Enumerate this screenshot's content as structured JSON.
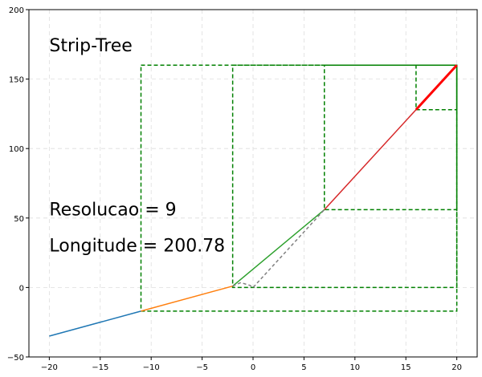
{
  "chart_data": {
    "type": "line",
    "title": "",
    "xlabel": "",
    "ylabel": "",
    "xlim": [
      -22,
      22
    ],
    "ylim": [
      -50,
      200
    ],
    "x_ticks": [
      -20,
      -15,
      -10,
      -5,
      0,
      5,
      10,
      15,
      20
    ],
    "y_ticks": [
      -50,
      0,
      50,
      100,
      150,
      200
    ],
    "x_tick_labels": [
      "−20",
      "−15",
      "−10",
      "−5",
      "0",
      "5",
      "10",
      "15",
      "20"
    ],
    "y_tick_labels": [
      "−50",
      "0",
      "50",
      "100",
      "150",
      "200"
    ],
    "grid": true,
    "annotations": [
      {
        "text": "Strip-Tree",
        "x": -20,
        "y": 170
      },
      {
        "text": "Resolucao = 9",
        "x": -20,
        "y": 52
      },
      {
        "text": "Longitude = 200.78",
        "x": -20,
        "y": 26
      }
    ],
    "series": [
      {
        "color": "#1f77b4",
        "style": "solid",
        "x": [
          -20,
          -11
        ],
        "y": [
          -35,
          -17
        ]
      },
      {
        "color": "#ff7f0e",
        "style": "solid",
        "x": [
          -11,
          -2
        ],
        "y": [
          -17,
          1
        ]
      },
      {
        "color": "#2ca02c",
        "style": "solid",
        "x": [
          -2,
          7
        ],
        "y": [
          1,
          56
        ]
      },
      {
        "color": "#d62728",
        "style": "solid",
        "x": [
          7,
          16
        ],
        "y": [
          56,
          128
        ]
      },
      {
        "color": "#ff0000",
        "style": "solid",
        "x": [
          16,
          20
        ],
        "y": [
          128,
          160
        ],
        "thick": true
      },
      {
        "color": "#808080",
        "style": "dashed",
        "x": [
          -2,
          -1.2,
          -0.3,
          0,
          7
        ],
        "y": [
          1,
          3.5,
          1.5,
          0,
          56
        ]
      }
    ],
    "boxes": [
      {
        "x": [
          -11,
          20
        ],
        "y": [
          -17,
          160
        ],
        "color": "#008000"
      },
      {
        "x": [
          -2,
          20
        ],
        "y": [
          0,
          160
        ],
        "color": "#008000"
      },
      {
        "x": [
          7,
          20
        ],
        "y": [
          56,
          160
        ],
        "color": "#008000"
      },
      {
        "x": [
          16,
          20
        ],
        "y": [
          128,
          160
        ],
        "color": "#008000"
      }
    ],
    "grid_color": "#dddddd"
  }
}
